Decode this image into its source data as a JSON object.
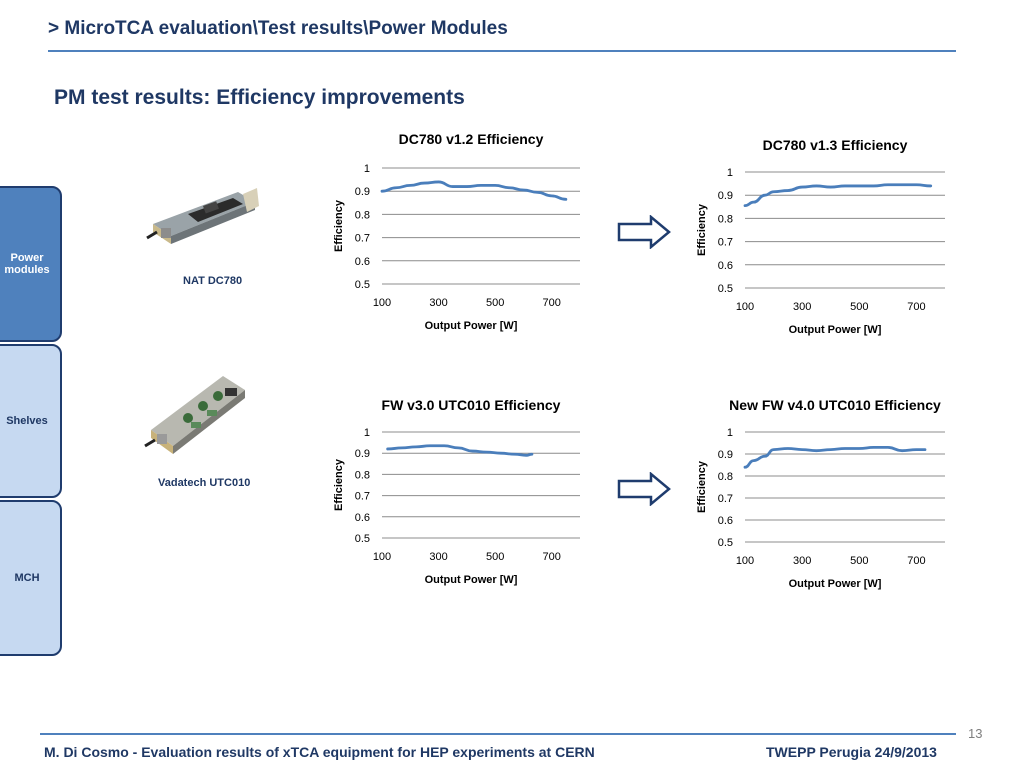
{
  "header": {
    "title": "> MicroTCA evaluation\\Test results\\Power Modules"
  },
  "section_title": "PM test results: Efficiency improvements",
  "sidebar": {
    "items": [
      {
        "label": "Power modules",
        "active": true
      },
      {
        "label": "Shelves",
        "active": false
      },
      {
        "label": "MCH",
        "active": false
      }
    ]
  },
  "modules": [
    {
      "label": "NAT DC780"
    },
    {
      "label": "Vadatech UTC010"
    }
  ],
  "chart_data": [
    {
      "type": "line",
      "title": "DC780 v1.2 Efficiency",
      "xlabel": "Output Power [W]",
      "ylabel": "Efficiency",
      "xlim": [
        100,
        800
      ],
      "ylim": [
        0.5,
        1
      ],
      "xticks": [
        "100",
        "300",
        "500",
        "700"
      ],
      "yticks": [
        "0.5",
        "0.6",
        "0.7",
        "0.8",
        "0.9",
        "1"
      ],
      "grid": true,
      "series": [
        {
          "x": [
            100,
            150,
            200,
            250,
            300,
            350,
            400,
            450,
            500,
            550,
            600,
            650,
            700,
            750
          ],
          "y": [
            0.9,
            0.915,
            0.925,
            0.935,
            0.94,
            0.92,
            0.92,
            0.925,
            0.925,
            0.915,
            0.905,
            0.895,
            0.88,
            0.865
          ]
        }
      ]
    },
    {
      "type": "line",
      "title": "DC780 v1.3 Efficiency",
      "xlabel": "Output Power [W]",
      "ylabel": "Efficiency",
      "xlim": [
        100,
        800
      ],
      "ylim": [
        0.5,
        1
      ],
      "xticks": [
        "100",
        "300",
        "500",
        "700"
      ],
      "yticks": [
        "0.5",
        "0.6",
        "0.7",
        "0.8",
        "0.9",
        "1"
      ],
      "grid": true,
      "series": [
        {
          "x": [
            100,
            130,
            170,
            200,
            250,
            300,
            350,
            400,
            450,
            500,
            550,
            600,
            650,
            700,
            750
          ],
          "y": [
            0.855,
            0.87,
            0.9,
            0.915,
            0.92,
            0.935,
            0.94,
            0.935,
            0.94,
            0.94,
            0.94,
            0.945,
            0.945,
            0.945,
            0.94
          ]
        }
      ]
    },
    {
      "type": "line",
      "title": "FW v3.0 UTC010 Efficiency",
      "xlabel": "Output Power [W]",
      "ylabel": "Efficiency",
      "xlim": [
        100,
        800
      ],
      "ylim": [
        0.5,
        1
      ],
      "xticks": [
        "100",
        "300",
        "500",
        "700"
      ],
      "yticks": [
        "0.5",
        "0.6",
        "0.7",
        "0.8",
        "0.9",
        "1"
      ],
      "grid": true,
      "series": [
        {
          "x": [
            120,
            170,
            220,
            270,
            320,
            370,
            420,
            470,
            520,
            570,
            610,
            630
          ],
          "y": [
            0.92,
            0.925,
            0.93,
            0.935,
            0.935,
            0.925,
            0.91,
            0.905,
            0.9,
            0.895,
            0.89,
            0.895
          ]
        }
      ]
    },
    {
      "type": "line",
      "title": "New FW v4.0 UTC010 Efficiency",
      "xlabel": "Output Power [W]",
      "ylabel": "Efficiency",
      "xlim": [
        100,
        800
      ],
      "ylim": [
        0.5,
        1
      ],
      "xticks": [
        "100",
        "300",
        "500",
        "700"
      ],
      "yticks": [
        "0.5",
        "0.6",
        "0.7",
        "0.8",
        "0.9",
        "1"
      ],
      "grid": true,
      "series": [
        {
          "x": [
            100,
            130,
            170,
            200,
            250,
            300,
            350,
            400,
            450,
            500,
            550,
            600,
            650,
            700,
            730
          ],
          "y": [
            0.84,
            0.87,
            0.89,
            0.92,
            0.925,
            0.92,
            0.915,
            0.92,
            0.925,
            0.925,
            0.93,
            0.93,
            0.915,
            0.92,
            0.92
          ]
        }
      ]
    }
  ],
  "footer": {
    "left": "M. Di Cosmo - Evaluation results of xTCA  equipment for HEP experiments  at CERN",
    "right": "TWEPP Perugia 24/9/2013",
    "page_number": "13"
  },
  "colors": {
    "title": "#1f3864",
    "accent": "#4f81bd",
    "line": "#4a7ebb",
    "tab_active": "#4f81bd",
    "tab_inactive": "#c6d9f1"
  }
}
